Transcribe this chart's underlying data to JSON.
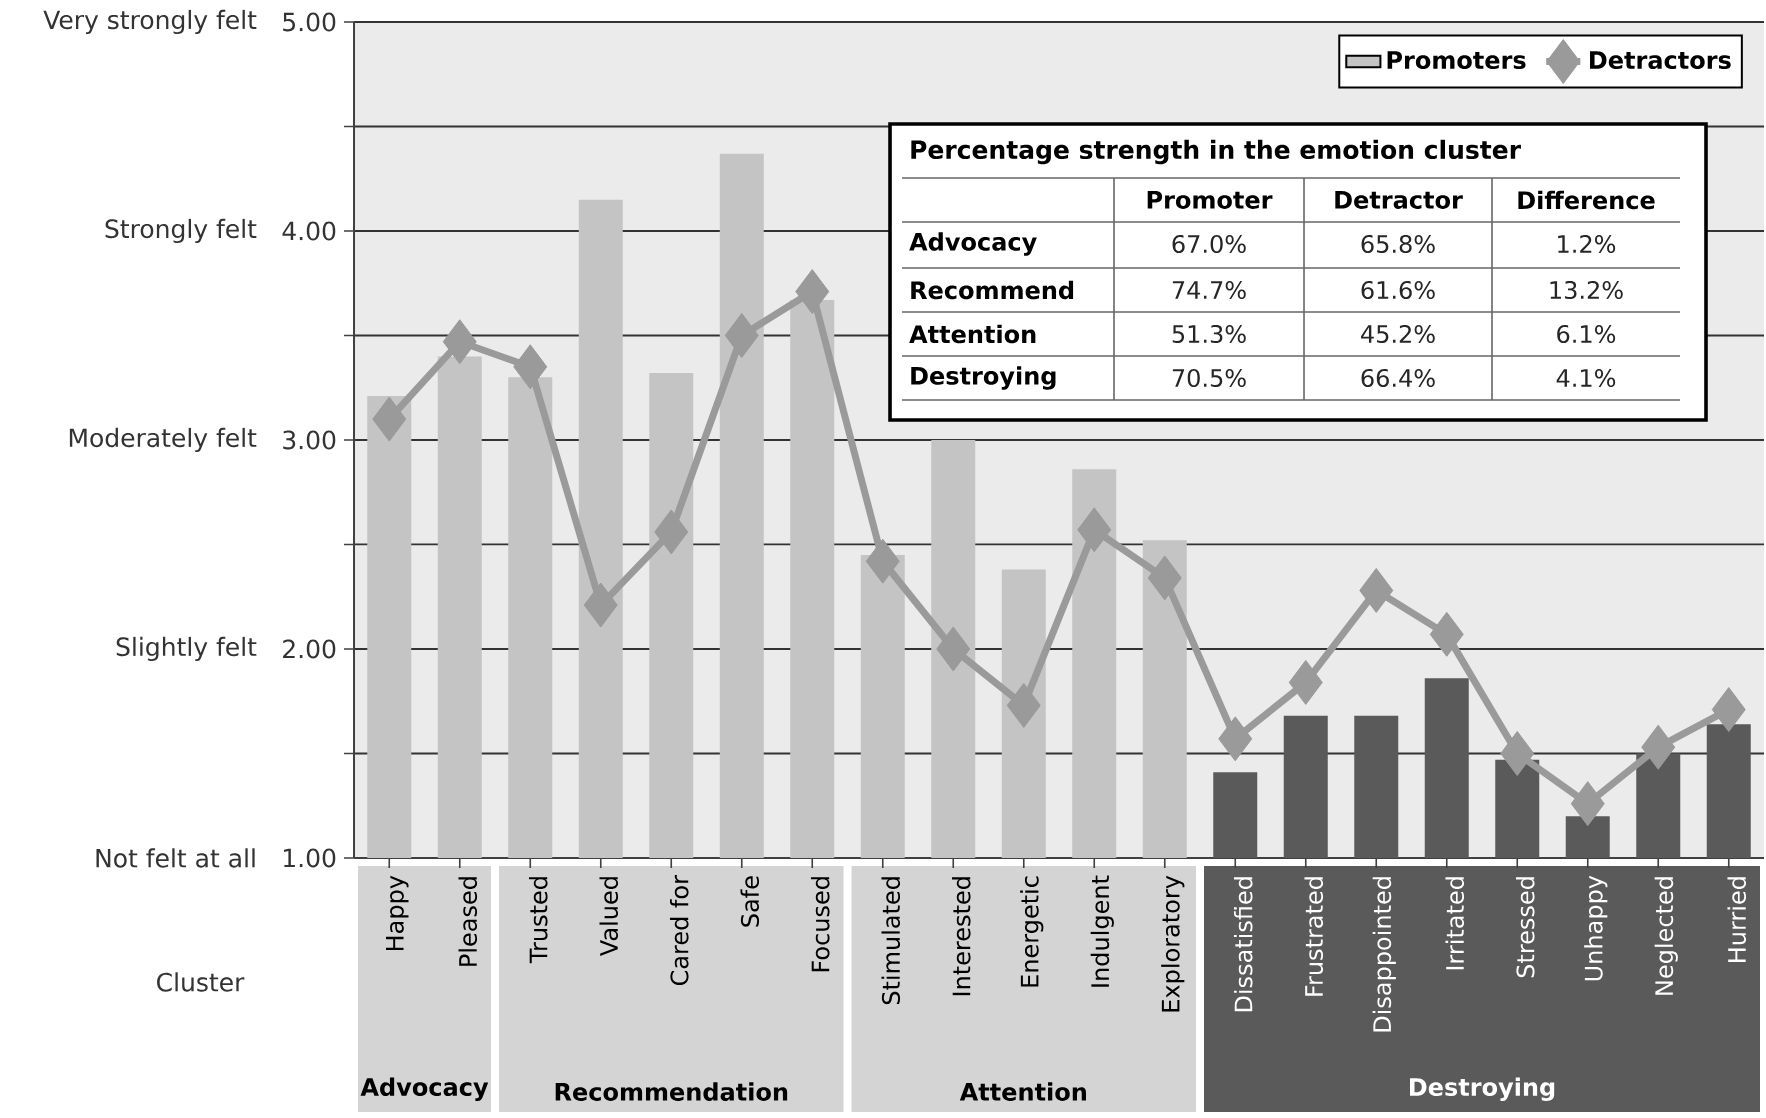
{
  "chart_data": {
    "type": "bar",
    "xlabel": "Cluster",
    "categories": [
      "Happy",
      "Pleased",
      "Trusted",
      "Valued",
      "Cared for",
      "Safe",
      "Focused",
      "Stimulated",
      "Interested",
      "Energetic",
      "Indulgent",
      "Exploratory",
      "Dissatisfied",
      "Frustrated",
      "Disappointed",
      "Irritated",
      "Stressed",
      "Unhappy",
      "Neglected",
      "Hurried"
    ],
    "series": [
      {
        "name": "Promoters",
        "colors": [
          "#c4c4c4",
          "#c4c4c4",
          "#c4c4c4",
          "#c4c4c4",
          "#c4c4c4",
          "#c4c4c4",
          "#c4c4c4",
          "#c4c4c4",
          "#c4c4c4",
          "#c4c4c4",
          "#c4c4c4",
          "#c4c4c4",
          "#5a5a5a",
          "#5a5a5a",
          "#5a5a5a",
          "#5a5a5a",
          "#5a5a5a",
          "#5a5a5a",
          "#5a5a5a",
          "#5a5a5a"
        ],
        "values": [
          3.21,
          3.4,
          3.3,
          4.15,
          3.32,
          4.37,
          3.67,
          2.45,
          3.0,
          2.38,
          2.86,
          2.52,
          1.41,
          1.68,
          1.68,
          1.86,
          1.47,
          1.2,
          1.5,
          1.64
        ]
      },
      {
        "name": "Detractors",
        "type": "line",
        "color": "#9a9a9a",
        "marker": "diamond",
        "line_style": "solid",
        "values": [
          3.1,
          3.47,
          3.35,
          2.21,
          2.56,
          3.5,
          3.71,
          2.42,
          2.0,
          1.73,
          2.57,
          2.34,
          1.57,
          1.84,
          2.28,
          2.07,
          1.5,
          1.26,
          1.53,
          1.71
        ]
      }
    ],
    "ylim": [
      1,
      5
    ],
    "yticks": [
      {
        "value": 1,
        "label": "1.00"
      },
      {
        "value": 1.5,
        "label": null
      },
      {
        "value": 2,
        "label": "2.00"
      },
      {
        "value": 2.5,
        "label": null
      },
      {
        "value": 3,
        "label": "3.00"
      },
      {
        "value": 3.5,
        "label": null
      },
      {
        "value": 4,
        "label": "4.00"
      },
      {
        "value": 4.5,
        "label": null
      },
      {
        "value": 5,
        "label": "5.00"
      }
    ],
    "grid": "y",
    "legend": "top right",
    "annotations": [
      "Advocacy",
      "Recommendation",
      "Attention",
      "Destroying",
      "Very strongly felt",
      "Strongly felt",
      "Moderately felt",
      "Slightly felt",
      "Not felt at all",
      "Percentage strength in the emotion cluster",
      "Promoter",
      "Detractor",
      "Difference",
      "Advocacy",
      "67.0%",
      "65.8%",
      "1.2%",
      "Recommend",
      "74.7%",
      "61.6%",
      "13.2%",
      "Attention",
      "51.3%",
      "45.2%",
      "6.1%",
      "Destroying",
      "70.5%",
      "66.4%",
      "4.1%"
    ]
  }
}
